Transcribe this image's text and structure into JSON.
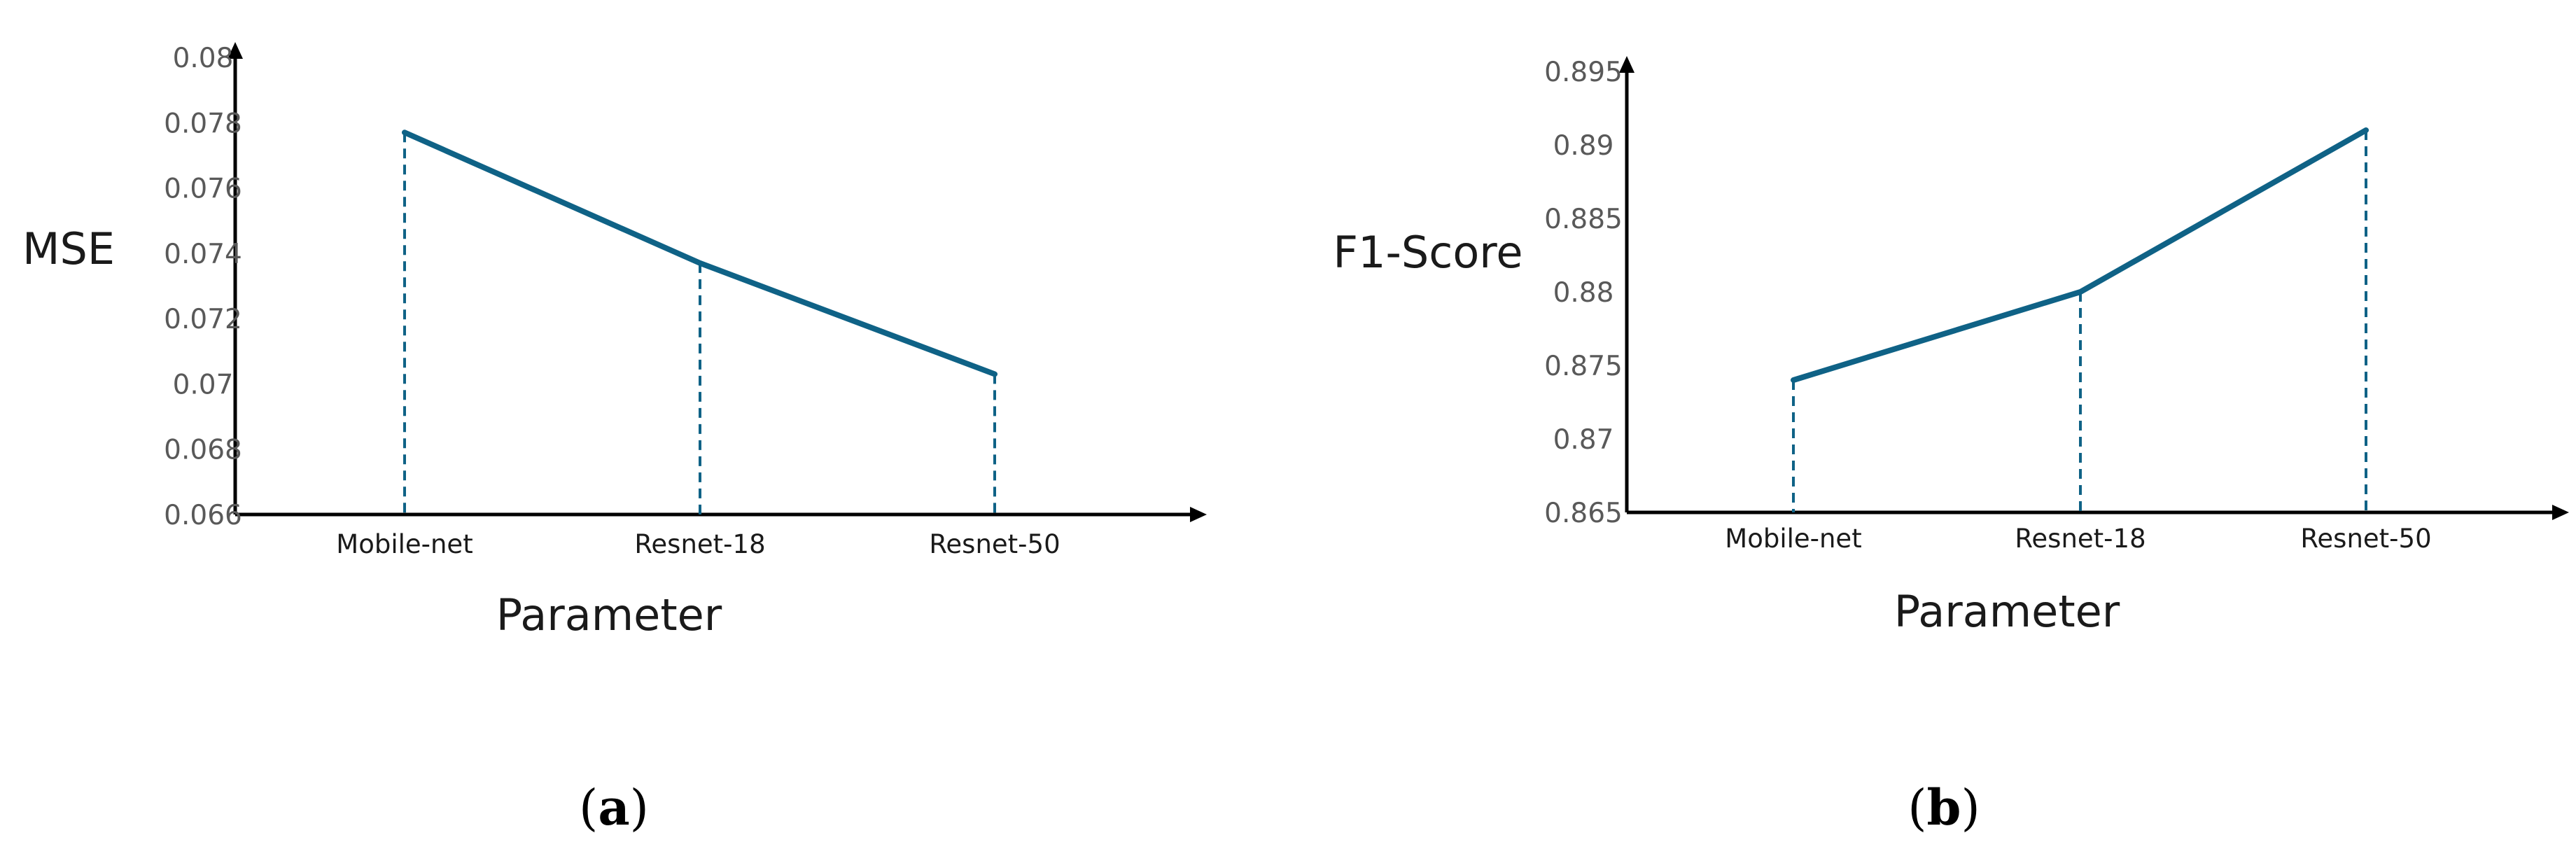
{
  "colors": {
    "line": "#0f6286",
    "axis": "#000000"
  },
  "chart_data": [
    {
      "type": "line",
      "panel_label_letter": "a",
      "xlabel": "Parameter",
      "ylabel": "MSE",
      "categories": [
        "Mobile-net",
        "Resnet-18",
        "Resnet-50"
      ],
      "values": [
        0.0777,
        0.0737,
        0.0703
      ],
      "ylim": [
        0.066,
        0.08
      ],
      "yticks": [
        "0.066",
        "0.068",
        "0.07",
        "0.072",
        "0.074",
        "0.076",
        "0.078",
        "0.08"
      ],
      "drop_lines": true,
      "grid": false
    },
    {
      "type": "line",
      "panel_label_letter": "b",
      "xlabel": "Parameter",
      "ylabel": "F1-Score",
      "categories": [
        "Mobile-net",
        "Resnet-18",
        "Resnet-50"
      ],
      "values": [
        0.874,
        0.88,
        0.891
      ],
      "ylim": [
        0.865,
        0.895
      ],
      "yticks": [
        "0.865",
        "0.87",
        "0.875",
        "0.88",
        "0.885",
        "0.89",
        "0.895"
      ],
      "drop_lines": true,
      "grid": false
    }
  ]
}
